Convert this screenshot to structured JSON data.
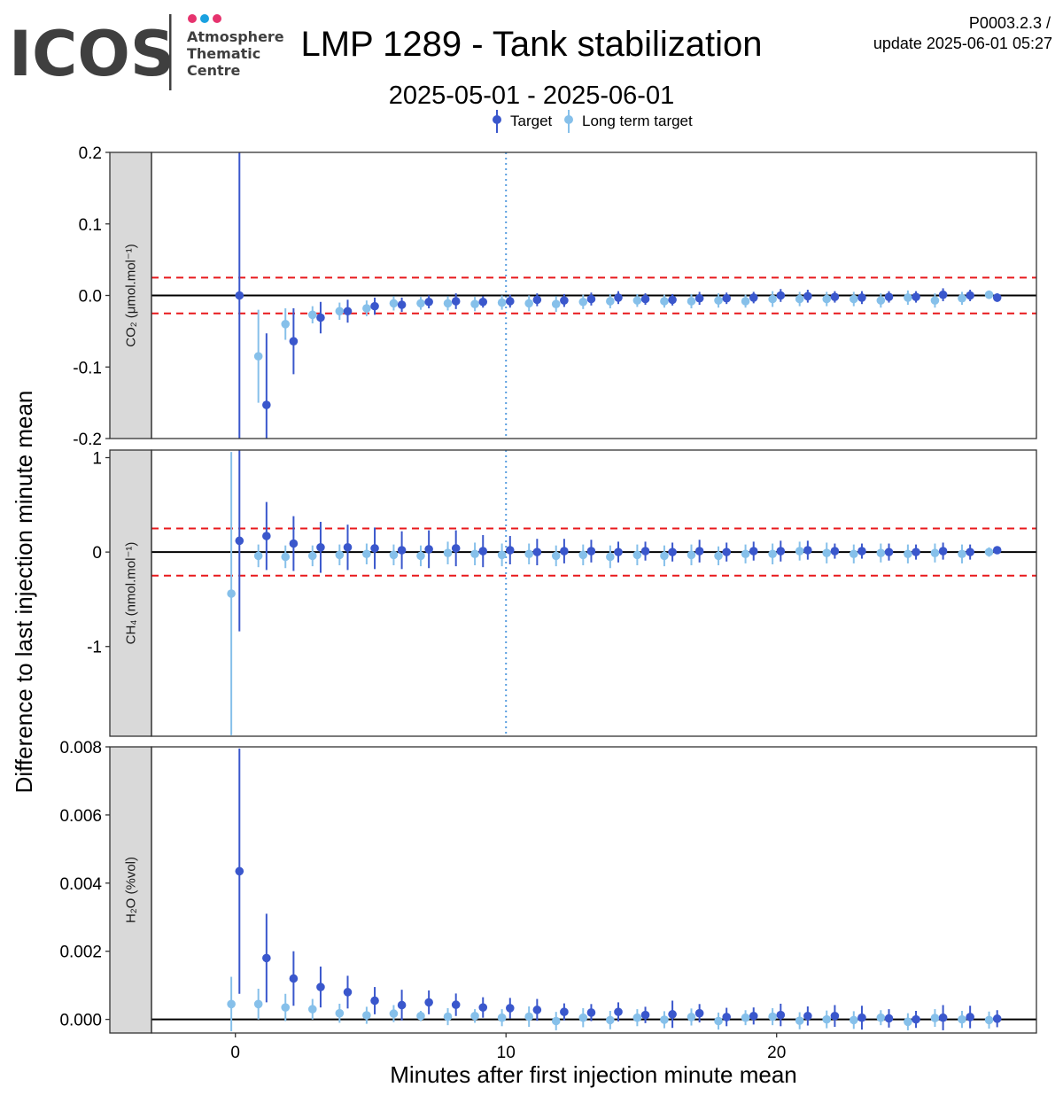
{
  "logo": {
    "wordmark": "ICOS",
    "line1": "Atmosphere",
    "line2": "Thematic",
    "line3": "Centre",
    "dot_colors": [
      "#e6336e",
      "#1aa1e0",
      "#e6336e"
    ]
  },
  "header": {
    "title": "LMP 1289 - Tank stabilization",
    "subtitle": "2025-05-01 - 2025-06-01",
    "product_code": "P0003.2.3 /",
    "update_label": "update  2025-06-01 05:27"
  },
  "legend": {
    "items": [
      {
        "label": "Target",
        "color": "#3a57cc"
      },
      {
        "label": "Long term target",
        "color": "#86c0ea"
      }
    ]
  },
  "axes": {
    "y_title": "Difference to last injection minute mean",
    "x_title": "Minutes after first injection minute mean"
  },
  "colors": {
    "target": "#3a57cc",
    "long_term": "#86c0ea",
    "threshold": "#e8191c",
    "zero_line": "#000000",
    "vline": "#5a9fe0",
    "strip_bg": "#d9d9d9"
  },
  "chart_data": {
    "type": "scatter",
    "x_range": [
      -3.1,
      29.6
    ],
    "x_ticks": [
      0,
      10,
      20
    ],
    "x_tick_labels": [
      "0",
      "10",
      "20"
    ],
    "vline_x": 10,
    "x": [
      0,
      1,
      2,
      3,
      4,
      5,
      6,
      7,
      8,
      9,
      10,
      11,
      12,
      13,
      14,
      15,
      16,
      17,
      18,
      19,
      20,
      21,
      22,
      23,
      24,
      25,
      26,
      27,
      28
    ],
    "panels": [
      {
        "strip_label": "CO₂ (μmol.mol⁻¹)",
        "ylim": [
          -0.2,
          0.2
        ],
        "y_ticks": [
          0.2,
          0.1,
          0.0,
          -0.1,
          -0.2
        ],
        "y_tick_labels": [
          "0.2",
          "0.1",
          "0.0",
          "-0.1",
          "-0.2"
        ],
        "thresholds": [
          0.025,
          -0.025
        ],
        "series": [
          {
            "name": "Target",
            "values": [
              0.0,
              -0.153,
              -0.064,
              -0.031,
              -0.022,
              -0.015,
              -0.013,
              -0.009,
              -0.008,
              -0.009,
              -0.008,
              -0.006,
              -0.007,
              -0.005,
              -0.003,
              -0.005,
              -0.006,
              -0.004,
              -0.004,
              -0.003,
              0.0,
              -0.001,
              -0.002,
              -0.003,
              -0.002,
              -0.002,
              0.001,
              0.0,
              -0.003
            ],
            "err": [
              0.2,
              0.1,
              0.046,
              0.022,
              0.016,
              0.012,
              0.01,
              0.009,
              0.011,
              0.008,
              0.009,
              0.009,
              0.009,
              0.009,
              0.009,
              0.008,
              0.008,
              0.009,
              0.008,
              0.008,
              0.009,
              0.009,
              0.008,
              0.009,
              0.008,
              0.008,
              0.009,
              0.008,
              0.006
            ]
          },
          {
            "name": "Long term target",
            "values": [
              null,
              -0.085,
              -0.04,
              -0.027,
              -0.022,
              -0.018,
              -0.011,
              -0.011,
              -0.011,
              -0.012,
              -0.01,
              -0.011,
              -0.012,
              -0.009,
              -0.008,
              -0.007,
              -0.008,
              -0.008,
              -0.007,
              -0.008,
              -0.005,
              -0.005,
              -0.005,
              -0.005,
              -0.007,
              -0.003,
              -0.007,
              -0.004,
              0.001
            ],
            "err": [
              null,
              0.065,
              0.022,
              0.012,
              0.012,
              0.011,
              0.01,
              0.009,
              0.01,
              0.01,
              0.01,
              0.011,
              0.011,
              0.01,
              0.01,
              0.009,
              0.009,
              0.01,
              0.01,
              0.009,
              0.011,
              0.01,
              0.01,
              0.01,
              0.01,
              0.01,
              0.01,
              0.009,
              0.006
            ]
          }
        ]
      },
      {
        "strip_label": "CH₄ (nmol.mol⁻¹)",
        "ylim": [
          -1.95,
          1.08
        ],
        "y_ticks": [
          1,
          0,
          -1
        ],
        "y_tick_labels": [
          "1",
          "0",
          "-1"
        ],
        "thresholds": [
          0.25,
          -0.25
        ],
        "series": [
          {
            "name": "Target",
            "values": [
              0.12,
              0.17,
              0.09,
              0.05,
              0.05,
              0.04,
              0.02,
              0.03,
              0.04,
              0.01,
              0.02,
              0.0,
              0.01,
              0.01,
              0.0,
              0.01,
              0.0,
              0.01,
              0.0,
              0.01,
              0.01,
              0.02,
              0.01,
              0.01,
              0.0,
              0.0,
              0.01,
              0.0,
              0.02
            ],
            "err": [
              0.96,
              0.36,
              0.29,
              0.27,
              0.24,
              0.22,
              0.2,
              0.2,
              0.19,
              0.17,
              0.15,
              0.14,
              0.13,
              0.12,
              0.11,
              0.1,
              0.1,
              0.12,
              0.1,
              0.1,
              0.11,
              0.1,
              0.08,
              0.08,
              0.09,
              0.08,
              0.09,
              0.08,
              0.04
            ]
          },
          {
            "name": "Long term target",
            "values": [
              -0.44,
              -0.04,
              -0.05,
              -0.04,
              -0.03,
              -0.02,
              -0.03,
              -0.04,
              -0.01,
              -0.02,
              -0.03,
              -0.02,
              -0.04,
              -0.03,
              -0.05,
              -0.03,
              -0.04,
              -0.03,
              -0.04,
              -0.02,
              -0.02,
              0.01,
              -0.01,
              -0.02,
              -0.01,
              -0.02,
              -0.01,
              -0.02,
              0.0
            ]
          },
          {
            "name": "Long term target err",
            "values": [
              1.5,
              0.12,
              0.12,
              0.11,
              0.11,
              0.11,
              0.11,
              0.11,
              0.12,
              0.12,
              0.12,
              0.11,
              0.11,
              0.11,
              0.12,
              0.11,
              0.11,
              0.11,
              0.1,
              0.1,
              0.11,
              0.1,
              0.11,
              0.1,
              0.1,
              0.1,
              0.1,
              0.1,
              0.05
            ]
          }
        ]
      },
      {
        "strip_label": "H₂O (%vol)",
        "ylim": [
          -0.0004,
          0.008
        ],
        "y_ticks": [
          0.008,
          0.006,
          0.004,
          0.002,
          0.0
        ],
        "y_tick_labels": [
          "0.008",
          "0.006",
          "0.004",
          "0.002",
          "0.000"
        ],
        "thresholds": [],
        "series": [
          {
            "name": "Target",
            "values": [
              0.00435,
              0.0018,
              0.0012,
              0.00095,
              0.0008,
              0.00055,
              0.00042,
              0.0005,
              0.00043,
              0.00035,
              0.00033,
              0.00028,
              0.00022,
              0.0002,
              0.00022,
              0.00013,
              0.00015,
              0.00018,
              7e-05,
              0.0001,
              0.00013,
              0.0001,
              0.0001,
              5e-05,
              3e-05,
              0.0,
              5e-05,
              7e-05,
              2e-05
            ],
            "err": [
              0.0036,
              0.0013,
              0.0008,
              0.0006,
              0.00048,
              0.0004,
              0.00045,
              0.00035,
              0.00033,
              0.0003,
              0.0003,
              0.00032,
              0.00025,
              0.00025,
              0.00028,
              0.00024,
              0.0004,
              0.00027,
              0.00027,
              0.00025,
              0.00033,
              0.00028,
              0.00032,
              0.00035,
              0.00027,
              0.00025,
              0.00037,
              0.00033,
              0.00025
            ]
          },
          {
            "name": "Long term target",
            "values": [
              0.00045,
              0.00045,
              0.00035,
              0.0003,
              0.00018,
              0.00012,
              0.00017,
              0.0001,
              8e-05,
              0.0001,
              5e-05,
              8e-05,
              -5e-05,
              5e-05,
              -2e-05,
              5e-05,
              -1e-05,
              7e-05,
              -5e-05,
              5e-05,
              8e-05,
              -4e-05,
              0.0,
              -2e-05,
              5e-05,
              -7e-05,
              4e-05,
              0.0,
              -2e-05
            ],
            "err": [
              0.0008,
              0.00045,
              0.0004,
              0.0003,
              0.00028,
              0.00025,
              0.00025,
              0.00015,
              0.00025,
              0.0002,
              0.00025,
              0.0003,
              0.00027,
              0.00028,
              0.00027,
              0.00025,
              0.00025,
              0.00025,
              0.00025,
              0.00022,
              0.00025,
              0.00025,
              0.00026,
              0.00026,
              0.00022,
              0.00025,
              0.00026,
              0.00025,
              0.00025
            ]
          }
        ]
      }
    ]
  }
}
